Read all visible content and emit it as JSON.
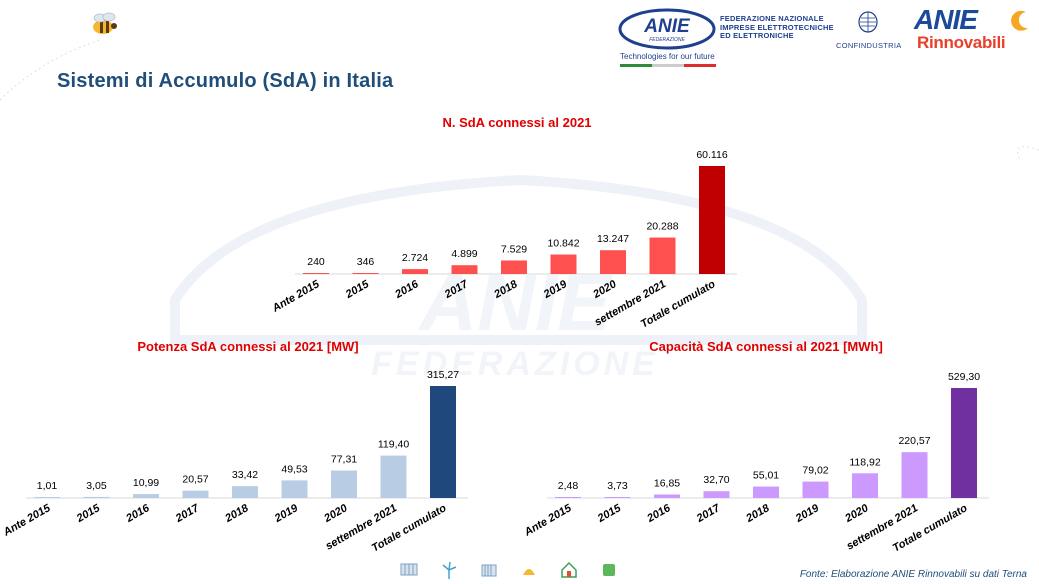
{
  "page": {
    "title": "Sistemi di Accumulo (SdA)  in Italia",
    "source": "Fonte: Elaborazione ANIE Rinnovabili su dati Terna"
  },
  "header": {
    "anie_logo_text": "ANIE",
    "anie_logo_sub": "FEDERAZIONE",
    "federation_name_lines": [
      "FEDERAZIONE NAZIONALE",
      "IMPRESE ELETTROTECNICHE",
      "ED ELETTRONICHE"
    ],
    "tagline": "Technologies for our future",
    "confindustria": "CONFINDUSTRIA",
    "anie_rinnovabili_top": "ANIE",
    "anie_rinnovabili_bottom": "Rinnovabili"
  },
  "watermark": {
    "text_top": "ANIE",
    "text_bottom": "FEDERAZIONE"
  },
  "footer": {
    "icons": [
      "solar-panel-icon",
      "wind-turbine-icon",
      "battery-icon",
      "hydro-icon",
      "house-icon",
      "recycle-icon"
    ]
  },
  "colors": {
    "title_blue": "#1f4e79",
    "chart_title_red": "#e00000",
    "red_bar": "#ff5050",
    "red_total": "#c00000",
    "blue_bar": "#b8cce4",
    "blue_total": "#1f497d",
    "purple_bar": "#cc99ff",
    "purple_total": "#7030a0"
  },
  "chart_data": [
    {
      "type": "bar",
      "title": "N. SdA connessi al 2021",
      "categories": [
        "Ante 2015",
        "2015",
        "2016",
        "2017",
        "2018",
        "2019",
        "2020",
        "settembre 2021",
        "Totale cumulato"
      ],
      "values": [
        240,
        346,
        2724,
        4899,
        7529,
        10842,
        13247,
        20288,
        60116
      ],
      "labels": [
        "240",
        "346",
        "2.724",
        "4.899",
        "7.529",
        "10.842",
        "13.247",
        "20.288",
        "60.116"
      ],
      "bar_color": "#ff5050",
      "total_color": "#c00000",
      "grid": false,
      "legend": "none"
    },
    {
      "type": "bar",
      "title": "Potenza SdA connessi al 2021 [MW]",
      "categories": [
        "Ante 2015",
        "2015",
        "2016",
        "2017",
        "2018",
        "2019",
        "2020",
        "settembre 2021",
        "Totale cumulato"
      ],
      "values": [
        1.01,
        3.05,
        10.99,
        20.57,
        33.42,
        49.53,
        77.31,
        119.4,
        315.27
      ],
      "labels": [
        "1,01",
        "3,05",
        "10,99",
        "20,57",
        "33,42",
        "49,53",
        "77,31",
        "119,40",
        "315,27"
      ],
      "bar_color": "#b8cce4",
      "total_color": "#1f497d",
      "grid": false,
      "legend": "none"
    },
    {
      "type": "bar",
      "title": "Capacità SdA connessi al 2021 [MWh]",
      "categories": [
        "Ante 2015",
        "2015",
        "2016",
        "2017",
        "2018",
        "2019",
        "2020",
        "settembre 2021",
        "Totale cumulato"
      ],
      "values": [
        2.48,
        3.73,
        16.85,
        32.7,
        55.01,
        79.02,
        118.92,
        220.57,
        529.3
      ],
      "labels": [
        "2,48",
        "3,73",
        "16,85",
        "32,70",
        "55,01",
        "79,02",
        "118,92",
        "220,57",
        "529,30"
      ],
      "bar_color": "#cc99ff",
      "total_color": "#7030a0",
      "grid": false,
      "legend": "none"
    }
  ]
}
